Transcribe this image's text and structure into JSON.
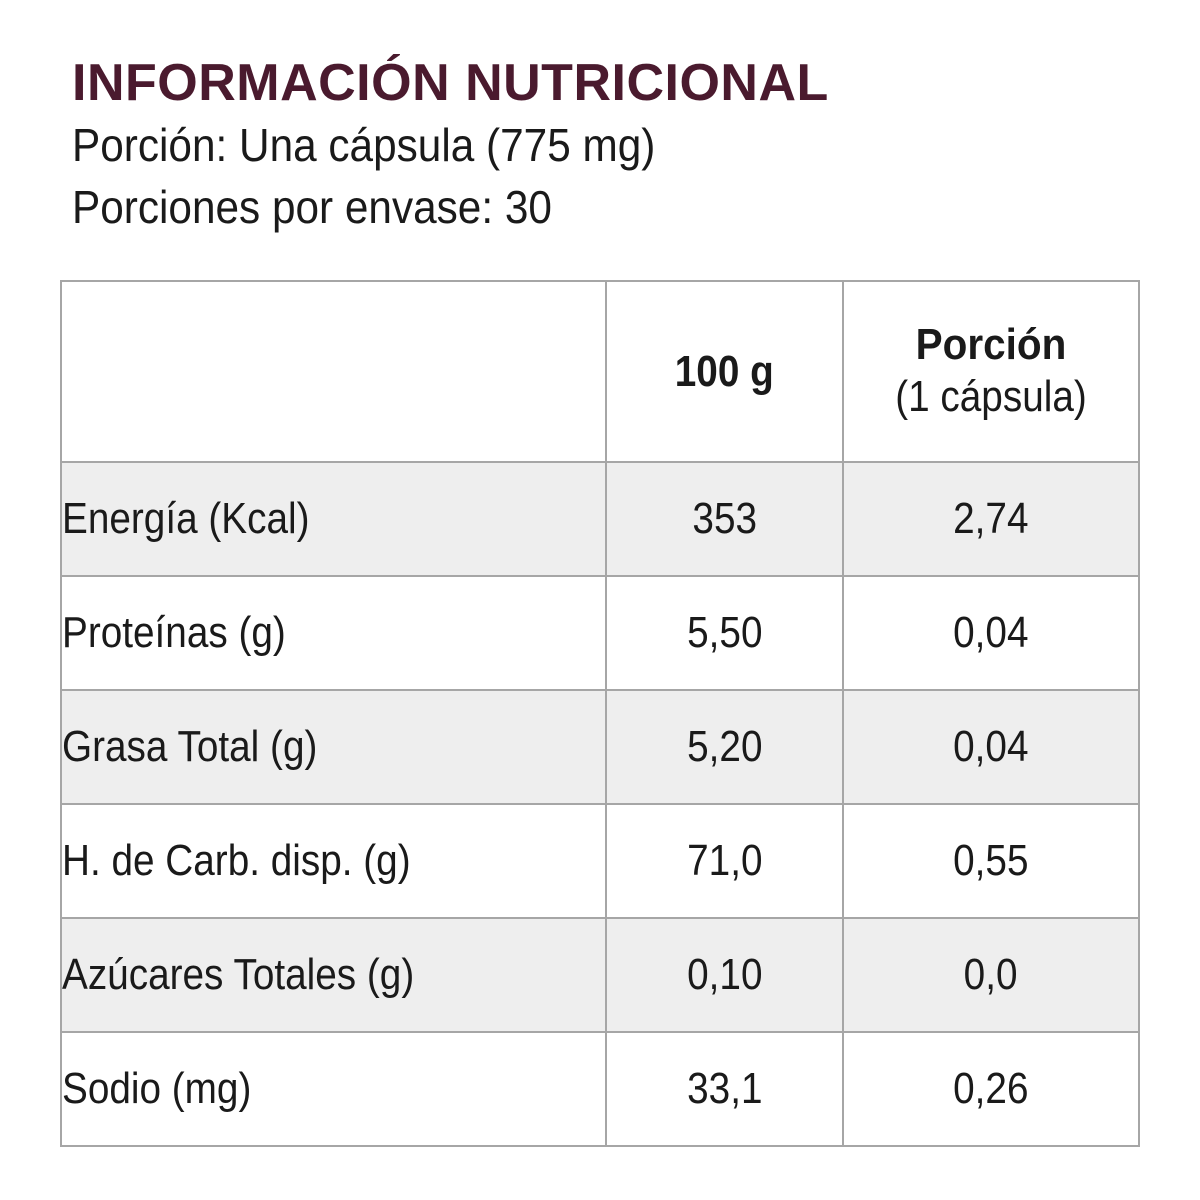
{
  "header": {
    "title": "INFORMACIÓN NUTRICIONAL",
    "serving": "Porción: Una cápsula (775 mg)",
    "servings_per_container": "Porciones por envase: 30"
  },
  "colors": {
    "title": "#4a1a2e",
    "text": "#1a1a1a",
    "border": "#a6a6a6",
    "row_shade": "#eeeeee"
  },
  "table": {
    "columns": [
      {
        "label": ""
      },
      {
        "label": "100 g"
      },
      {
        "label": "Porción",
        "sublabel": "(1 cápsula)"
      }
    ],
    "rows": [
      {
        "name": "Energía (Kcal)",
        "per_100g": "353",
        "per_portion": "2,74"
      },
      {
        "name": "Proteínas (g)",
        "per_100g": "5,50",
        "per_portion": "0,04"
      },
      {
        "name": "Grasa Total (g)",
        "per_100g": "5,20",
        "per_portion": "0,04"
      },
      {
        "name": "H. de Carb. disp. (g)",
        "per_100g": "71,0",
        "per_portion": "0,55"
      },
      {
        "name": "Azúcares Totales (g)",
        "per_100g": "0,10",
        "per_portion": "0,0"
      },
      {
        "name": "Sodio (mg)",
        "per_100g": "33,1",
        "per_portion": "0,26"
      }
    ]
  }
}
